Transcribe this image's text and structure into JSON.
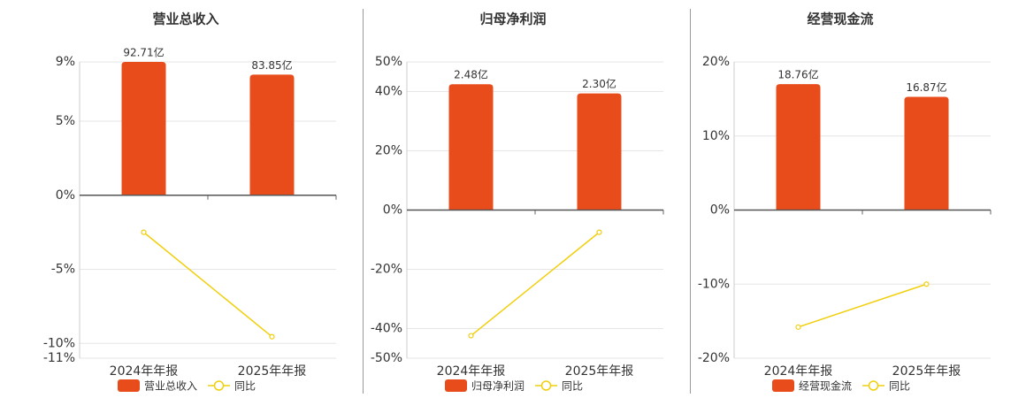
{
  "chart_data": [
    {
      "type": "bar_line",
      "title": "营业总收入",
      "categories": [
        "2024年年报",
        "2025年年报"
      ],
      "series": [
        {
          "name": "营业总收入",
          "color": "#e84c1b",
          "kind": "bar",
          "axis": "y2",
          "values": [
            92.71,
            83.85
          ],
          "value_labels": [
            "92.71亿",
            "83.85亿"
          ]
        },
        {
          "name": "同比",
          "color": "#f0cf0c",
          "kind": "line",
          "values": [
            -2.5,
            -9.55
          ]
        }
      ],
      "ylim": [
        -11,
        9
      ],
      "yticks": [
        {
          "value": 9,
          "label": "9%"
        },
        {
          "value": 5,
          "label": "5%"
        },
        {
          "value": 0,
          "label": "0%"
        },
        {
          "value": -5,
          "label": "-5%"
        },
        {
          "value": -10,
          "label": "-10%"
        },
        {
          "value": -11,
          "label": "-11%"
        }
      ],
      "y2lim": [
        -113.3,
        92.71
      ],
      "grid": true
    },
    {
      "type": "bar_line",
      "title": "归母净利润",
      "categories": [
        "2024年年报",
        "2025年年报"
      ],
      "series": [
        {
          "name": "归母净利润",
          "color": "#e84c1b",
          "kind": "bar",
          "axis": "y2",
          "values": [
            2.48,
            2.3
          ],
          "value_labels": [
            "2.48亿",
            "2.30亿"
          ]
        },
        {
          "name": "同比",
          "color": "#f0cf0c",
          "kind": "line",
          "values": [
            -42.4,
            -7.5
          ]
        }
      ],
      "ylim": [
        -50,
        50
      ],
      "yticks": [
        {
          "value": 50,
          "label": "50%"
        },
        {
          "value": 40,
          "label": "40%"
        },
        {
          "value": 20,
          "label": "20%"
        },
        {
          "value": 0,
          "label": "0%"
        },
        {
          "value": -20,
          "label": "-20%"
        },
        {
          "value": -40,
          "label": "-40%"
        },
        {
          "value": -50,
          "label": "-50%"
        }
      ],
      "y2lim": [
        -2.92,
        2.92
      ],
      "grid": true
    },
    {
      "type": "bar_line",
      "title": "经营现金流",
      "categories": [
        "2024年年报",
        "2025年年报"
      ],
      "series": [
        {
          "name": "经营现金流",
          "color": "#e84c1b",
          "kind": "bar",
          "axis": "y2",
          "values": [
            18.76,
            16.87
          ],
          "value_labels": [
            "18.76亿",
            "16.87亿"
          ]
        },
        {
          "name": "同比",
          "color": "#f0cf0c",
          "kind": "line",
          "values": [
            -15.8,
            -10.0
          ]
        }
      ],
      "ylim": [
        -20,
        20
      ],
      "yticks": [
        {
          "value": 20,
          "label": "20%"
        },
        {
          "value": 10,
          "label": "10%"
        },
        {
          "value": 0,
          "label": "0%"
        },
        {
          "value": -10,
          "label": "-10%"
        },
        {
          "value": -20,
          "label": "-20%"
        }
      ],
      "y2lim": [
        -22.07,
        22.07
      ],
      "grid": true
    }
  ]
}
